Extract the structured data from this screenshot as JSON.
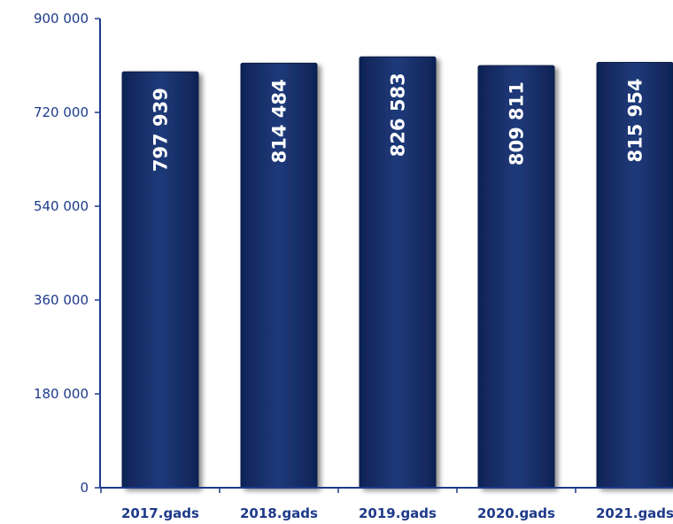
{
  "chart_data": {
    "type": "bar",
    "title": "",
    "xlabel": "",
    "ylabel": "",
    "categories": [
      "2017.gads",
      "2018.gads",
      "2019.gads",
      "2020.gads",
      "2021.gads"
    ],
    "values": [
      797939,
      814484,
      826583,
      809811,
      815954
    ],
    "value_labels": [
      "797 939",
      "814 484",
      "826 583",
      "809 811",
      "815 954"
    ],
    "ylim": [
      0,
      900000
    ],
    "yticks": [
      0,
      180000,
      360000,
      540000,
      720000,
      900000
    ],
    "ytick_labels": [
      "0",
      "180 000",
      "360 000",
      "540 000",
      "720 000",
      "900 000"
    ],
    "grid": false,
    "legend": "none",
    "colors": {
      "bar": "#0f2356",
      "bar_highlight": "#1f3a7a",
      "bar_shadow": "#7f8aa3",
      "axis": "#1e3a8a",
      "label_text": "#1e3a8a",
      "data_label": "#ffffff"
    }
  }
}
